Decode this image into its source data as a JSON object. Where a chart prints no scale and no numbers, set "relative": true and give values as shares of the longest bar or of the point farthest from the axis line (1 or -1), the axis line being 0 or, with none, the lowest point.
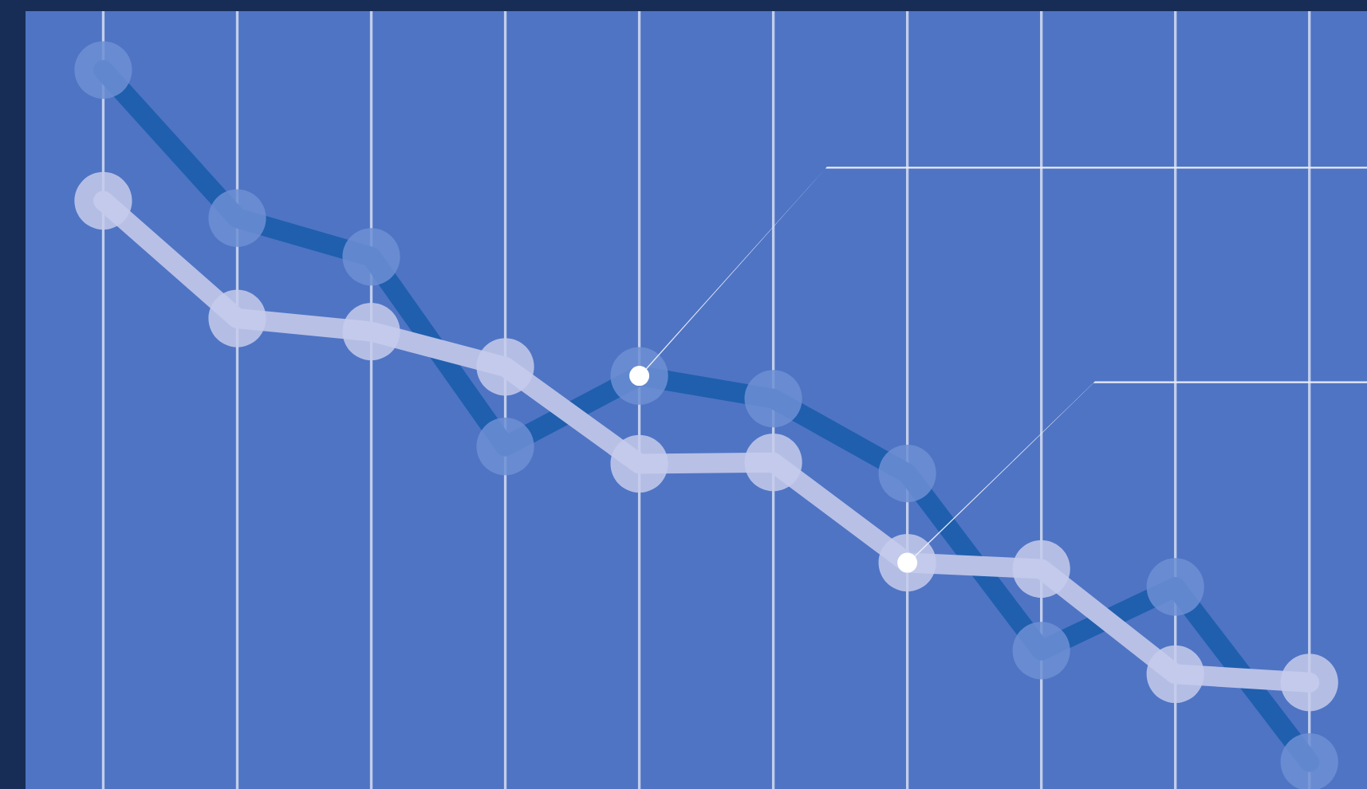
{
  "chart_data": {
    "type": "line",
    "relative": true,
    "categories": [
      null,
      null,
      null,
      null,
      null,
      null,
      null,
      null,
      null,
      null
    ],
    "series": [
      {
        "color": "#1f5fae",
        "values": [
          1,
          0.786,
          0.73,
          0.456,
          0.558,
          0.525,
          0.417,
          0.161,
          0.253,
          0
        ]
      },
      {
        "color": "#b8c0e6",
        "values": [
          0.811,
          0.641,
          0.622,
          0.571,
          0.431,
          0.433,
          0.288,
          0.279,
          0.127,
          0.115
        ]
      }
    ],
    "grid": "x",
    "legend": false,
    "marker": "circle",
    "line_style": "solid"
  }
}
